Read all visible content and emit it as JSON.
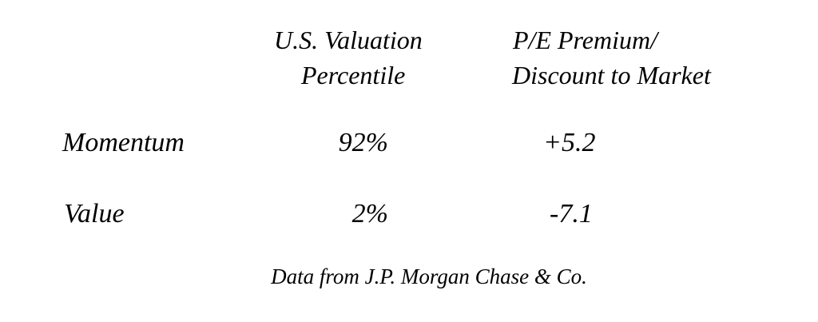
{
  "table": {
    "headers": [
      {
        "line1": "U.S. Valuation",
        "line2": "Percentile"
      },
      {
        "line1": "P/E Premium/",
        "line2": "Discount to Market"
      }
    ],
    "rows": [
      {
        "label": "Momentum",
        "percentile": "92%",
        "pe": "+5.2"
      },
      {
        "label": "Value",
        "percentile": "2%",
        "pe": "-7.1"
      }
    ]
  },
  "source": "Data from J.P. Morgan Chase & Co."
}
